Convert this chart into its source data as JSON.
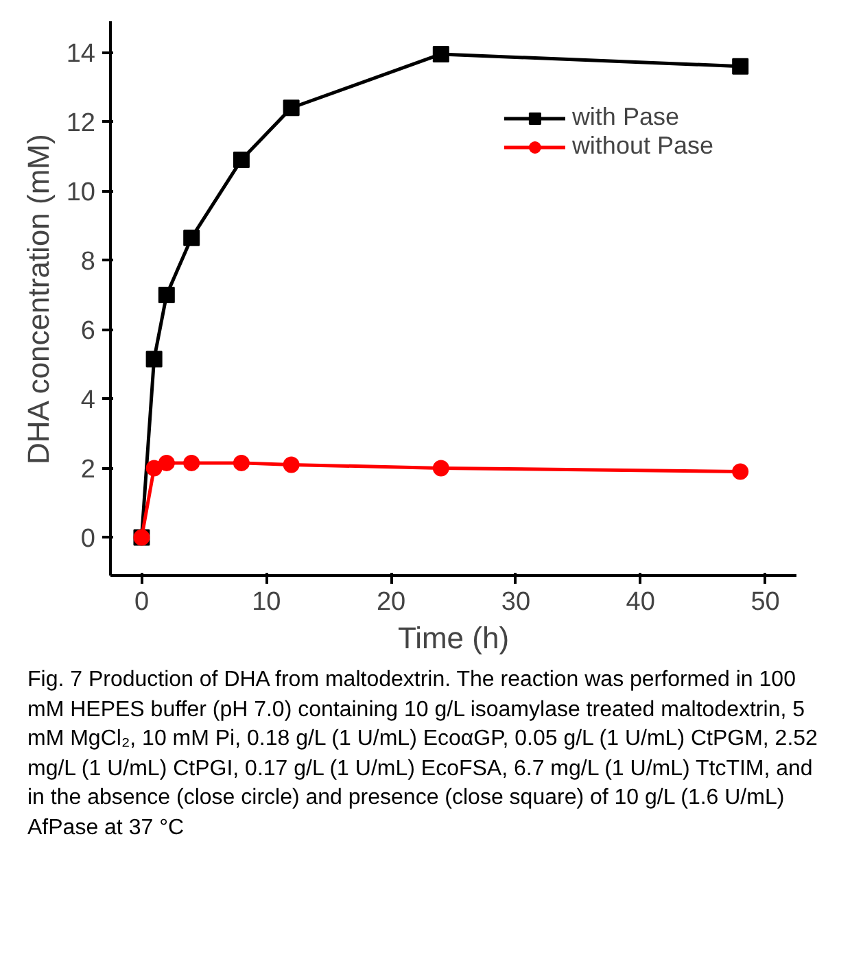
{
  "chart_data": {
    "type": "line",
    "xlabel": "Time (h)",
    "ylabel": "DHA concentration (mM)",
    "x": [
      0,
      1,
      2,
      4,
      8,
      12,
      24,
      48
    ],
    "series": [
      {
        "name": "with Pase",
        "color": "#000000",
        "marker": "square",
        "values": [
          0,
          5.15,
          7.0,
          8.65,
          10.9,
          12.4,
          13.95,
          13.6
        ]
      },
      {
        "name": "without Pase",
        "color": "#ff0000",
        "marker": "circle",
        "values": [
          0,
          2.0,
          2.15,
          2.15,
          2.15,
          2.1,
          2.0,
          1.9
        ]
      }
    ],
    "xlim": [
      -2.5,
      52.5
    ],
    "ylim": [
      -1.1,
      14.9
    ],
    "xticks": [
      0,
      10,
      20,
      30,
      40,
      50
    ],
    "yticks": [
      0,
      2,
      4,
      6,
      8,
      10,
      12,
      14
    ],
    "grid": false,
    "legend": "top right",
    "line_style": "solid",
    "annotations": [
      "Fig. 7  Production of DHA from maltodextrin. The reaction was performed in 100 mM HEPES buffer (pH 7.0) containing 10 g/L isoamylase treated maltodextrin, 5 mM MgCl₂, 10 mM Pi, 0.18 g/L (1 U/mL) EcoαGP, 0.05 g/L (1 U/mL) CtPGM, 2.52 mg/L (1 U/mL) CtPGI, 0.17 g/L (1 U/mL) EcoFSA, 6.7 mg/L (1 U/mL) TtcTIM, and in the absence (close circle) and presence (close square) of 10 g/L (1.6 U/mL) AfPase at 37 °C"
    ]
  }
}
